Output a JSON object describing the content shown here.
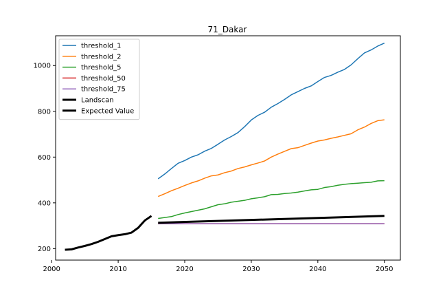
{
  "chart_data": {
    "type": "line",
    "title": "71_Dakar",
    "xlabel": "",
    "ylabel": "",
    "xlim": [
      2000.6,
      2052.4
    ],
    "ylim": [
      150,
      1130
    ],
    "xticks": [
      2000,
      2010,
      2020,
      2030,
      2040,
      2050
    ],
    "yticks": [
      200,
      400,
      600,
      800,
      1000
    ],
    "grid": false,
    "legend_position": "top-left",
    "series": [
      {
        "name": "threshold_1",
        "color": "#1f77b4",
        "linewidth": 1.5,
        "x": [
          2016,
          2017,
          2018,
          2019,
          2020,
          2021,
          2022,
          2023,
          2024,
          2025,
          2026,
          2027,
          2028,
          2029,
          2030,
          2031,
          2032,
          2033,
          2034,
          2035,
          2036,
          2037,
          2038,
          2039,
          2040,
          2041,
          2042,
          2043,
          2044,
          2045,
          2046,
          2047,
          2048,
          2049,
          2050
        ],
        "y": [
          505,
          526,
          550,
          573,
          585,
          600,
          610,
          626,
          638,
          656,
          675,
          690,
          707,
          733,
          762,
          782,
          796,
          818,
          834,
          852,
          872,
          886,
          900,
          911,
          930,
          948,
          957,
          971,
          983,
          1003,
          1030,
          1055,
          1068,
          1085,
          1098
        ]
      },
      {
        "name": "threshold_2",
        "color": "#ff7f0e",
        "linewidth": 1.5,
        "x": [
          2016,
          2017,
          2018,
          2019,
          2020,
          2021,
          2022,
          2023,
          2024,
          2025,
          2026,
          2027,
          2028,
          2029,
          2030,
          2031,
          2032,
          2033,
          2034,
          2035,
          2036,
          2037,
          2038,
          2039,
          2040,
          2041,
          2042,
          2043,
          2044,
          2045,
          2046,
          2047,
          2048,
          2049,
          2050
        ],
        "y": [
          428,
          440,
          453,
          464,
          476,
          487,
          496,
          508,
          518,
          522,
          532,
          539,
          550,
          557,
          566,
          574,
          583,
          600,
          613,
          625,
          637,
          641,
          651,
          661,
          670,
          675,
          682,
          688,
          695,
          702,
          719,
          731,
          747,
          759,
          763
        ]
      },
      {
        "name": "threshold_5",
        "color": "#2ca02c",
        "linewidth": 1.5,
        "x": [
          2016,
          2017,
          2018,
          2019,
          2020,
          2021,
          2022,
          2023,
          2024,
          2025,
          2026,
          2027,
          2028,
          2029,
          2030,
          2031,
          2032,
          2033,
          2034,
          2035,
          2036,
          2037,
          2038,
          2039,
          2040,
          2041,
          2042,
          2043,
          2044,
          2045,
          2046,
          2047,
          2048,
          2049,
          2050
        ],
        "y": [
          332,
          336,
          340,
          349,
          356,
          362,
          368,
          374,
          383,
          392,
          396,
          403,
          407,
          411,
          418,
          422,
          427,
          436,
          437,
          441,
          443,
          447,
          452,
          457,
          459,
          467,
          471,
          477,
          481,
          484,
          486,
          488,
          490,
          496,
          497
        ]
      },
      {
        "name": "threshold_50",
        "color": "#d62728",
        "linewidth": 1.5,
        "x": [
          2016,
          2050
        ],
        "y": [
          309,
          309
        ]
      },
      {
        "name": "threshold_75",
        "color": "#9467bd",
        "linewidth": 1.5,
        "x": [
          2016,
          2050
        ],
        "y": [
          309,
          309
        ]
      },
      {
        "name": "Landscan",
        "color": "#000000",
        "linewidth": 3,
        "x": [
          2002,
          2003,
          2004,
          2005,
          2006,
          2007,
          2008,
          2009,
          2010,
          2011,
          2012,
          2013,
          2014,
          2015
        ],
        "y": [
          195,
          197,
          205,
          212,
          220,
          230,
          242,
          254,
          259,
          263,
          270,
          291,
          323,
          343
        ]
      },
      {
        "name": "Expected Value",
        "color": "#000000",
        "linewidth": 3,
        "x": [
          2016,
          2050
        ],
        "y": [
          313,
          343
        ]
      }
    ]
  }
}
